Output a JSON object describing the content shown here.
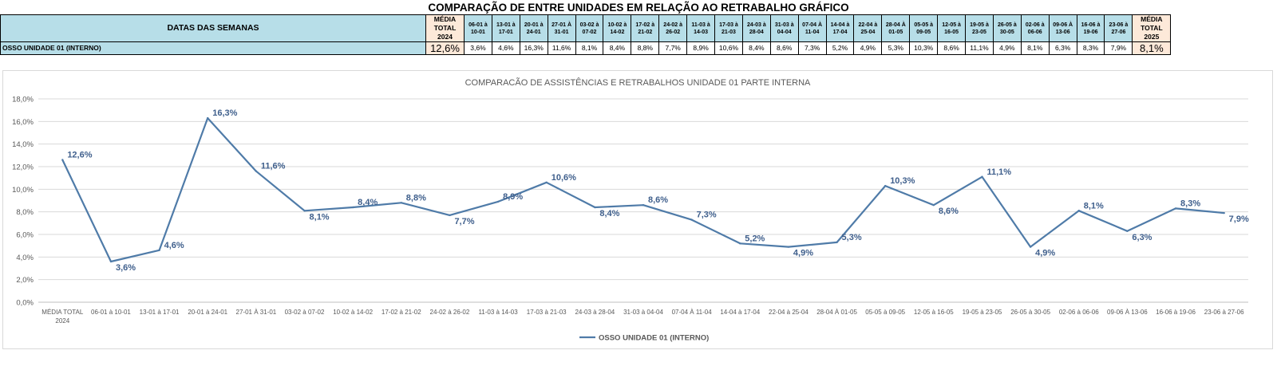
{
  "table": {
    "title": "COMPARAÇÃO DE ENTRE UNIDADES EM RELAÇÃO AO RETRABALHO GRÁFICO",
    "header_label": "DATAS DAS SEMANAS",
    "avg_2024_label": [
      "MÉDIA",
      "TOTAL 2024"
    ],
    "avg_2025_label": [
      "MÉDIA",
      "TOTAL 2025"
    ],
    "weeks": [
      [
        "06-01 à",
        "10-01"
      ],
      [
        "13-01 à",
        "17-01"
      ],
      [
        "20-01 à",
        "24-01"
      ],
      [
        "27-01 À",
        "31-01"
      ],
      [
        "03-02 à",
        "07-02"
      ],
      [
        "10-02 à",
        "14-02"
      ],
      [
        "17-02 à",
        "21-02"
      ],
      [
        "24-02 à",
        "26-02"
      ],
      [
        "11-03 à",
        "14-03"
      ],
      [
        "17-03 à",
        "21-03"
      ],
      [
        "24-03 à",
        "28-04"
      ],
      [
        "31-03 à",
        "04-04"
      ],
      [
        "07-04 À",
        "11-04"
      ],
      [
        "14-04 à",
        "17-04"
      ],
      [
        "22-04 à",
        "25-04"
      ],
      [
        "28-04 À",
        "01-05"
      ],
      [
        "05-05 à",
        "09-05"
      ],
      [
        "12-05 à",
        "16-05"
      ],
      [
        "19-05 à",
        "23-05"
      ],
      [
        "26-05 à",
        "30-05"
      ],
      [
        "02-06 à",
        "06-06"
      ],
      [
        "09-06 À",
        "13-06"
      ],
      [
        "16-06 à",
        "19-06"
      ],
      [
        "23-06 à",
        "27-06"
      ]
    ],
    "row_label": "OSSO UNIDADE 01 (INTERNO)",
    "avg_2024_value": "12,6%",
    "values": [
      "3,6%",
      "4,6%",
      "16,3%",
      "11,6%",
      "8,1%",
      "8,4%",
      "8,8%",
      "7,7%",
      "8,9%",
      "10,6%",
      "8,4%",
      "8,6%",
      "7,3%",
      "5,2%",
      "4,9%",
      "5,3%",
      "10,3%",
      "8,6%",
      "11,1%",
      "4,9%",
      "8,1%",
      "6,3%",
      "8,3%",
      "7,9%"
    ],
    "avg_2025_value": "8,1%"
  },
  "chart_data": {
    "type": "line",
    "title": "COMPARACÃO DE ASSISTÊNCIAS E RETRABALHOS UNIDADE 01 PARTE INTERNA",
    "categories": [
      [
        "MÉDIA TOTAL",
        "2024"
      ],
      [
        "06-01 à 10-01"
      ],
      [
        "13-01 à 17-01"
      ],
      [
        "20-01 à 24-01"
      ],
      [
        "27-01 À 31-01"
      ],
      [
        "03-02 à 07-02"
      ],
      [
        "10-02 à 14-02"
      ],
      [
        "17-02 à 21-02"
      ],
      [
        "24-02 à 26-02"
      ],
      [
        "11-03 à 14-03"
      ],
      [
        "17-03 à 21-03"
      ],
      [
        "24-03 à 28-04"
      ],
      [
        "31-03 à 04-04"
      ],
      [
        "07-04 À 11-04"
      ],
      [
        "14-04 à 17-04"
      ],
      [
        "22-04 à 25-04"
      ],
      [
        "28-04 À 01-05"
      ],
      [
        "05-05 à 09-05"
      ],
      [
        "12-05 à 16-05"
      ],
      [
        "19-05 à 23-05"
      ],
      [
        "26-05 à 30-05"
      ],
      [
        "02-06 à 06-06"
      ],
      [
        "09-06 À 13-06"
      ],
      [
        "16-06 à 19-06"
      ],
      [
        "23-06 à 27-06"
      ]
    ],
    "series": [
      {
        "name": "OSSO UNIDADE 01 (INTERNO)",
        "values": [
          12.6,
          3.6,
          4.6,
          16.3,
          11.6,
          8.1,
          8.4,
          8.8,
          7.7,
          8.9,
          10.6,
          8.4,
          8.6,
          7.3,
          5.2,
          4.9,
          5.3,
          10.3,
          8.6,
          11.1,
          4.9,
          8.1,
          6.3,
          8.3,
          7.9
        ],
        "labels": [
          "12,6%",
          "3,6%",
          "4,6%",
          "16,3%",
          "11,6%",
          "8,1%",
          "8,4%",
          "8,8%",
          "7,7%",
          "8,9%",
          "10,6%",
          "8,4%",
          "8,6%",
          "7,3%",
          "5,2%",
          "4,9%",
          "5,3%",
          "10,3%",
          "8,6%",
          "11,1%",
          "4,9%",
          "8,1%",
          "6,3%",
          "8,3%",
          "7,9%"
        ]
      }
    ],
    "ylim": [
      0,
      18
    ],
    "yticks": [
      "0,0%",
      "2,0%",
      "4,0%",
      "6,0%",
      "8,0%",
      "10,0%",
      "12,0%",
      "14,0%",
      "16,0%",
      "18,0%"
    ],
    "grid": true,
    "legend": "bottom",
    "colors": {
      "line": "#4f7ba8",
      "label": "#3f5f8c",
      "grid": "#d9d9d9",
      "axis_text": "#595959"
    }
  },
  "colors": {
    "header_bg": "#b7dee8",
    "avg_bg": "#fde9d9"
  }
}
